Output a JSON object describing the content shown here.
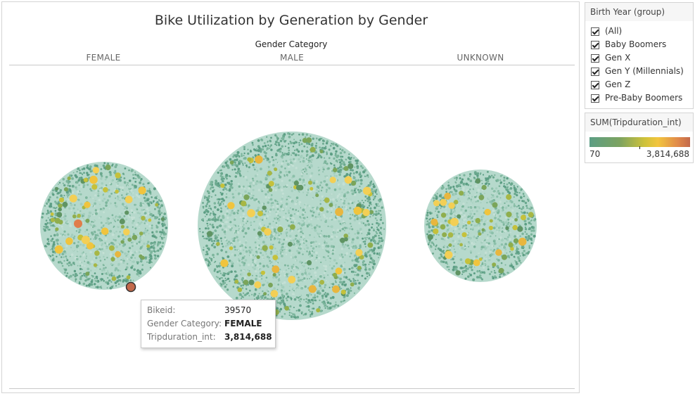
{
  "worksheet": {
    "title": "Bike Utilization by Generation by Gender",
    "category_header": "Gender Category",
    "columns": [
      "FEMALE",
      "MALE",
      "UNKNOWN"
    ]
  },
  "tooltip": {
    "rows": [
      {
        "label": "Bikeid:",
        "value": "39570"
      },
      {
        "label": "Gender Category:",
        "value": "FEMALE"
      },
      {
        "label": "Tripduration_int:",
        "value": "3,814,688"
      }
    ]
  },
  "filter": {
    "title": "Birth Year (group)",
    "items": [
      {
        "label": "(All)",
        "checked": true
      },
      {
        "label": "Baby Boomers",
        "checked": true
      },
      {
        "label": "Gen X",
        "checked": true
      },
      {
        "label": "Gen Y (Millennials)",
        "checked": true
      },
      {
        "label": "Gen Z",
        "checked": true
      },
      {
        "label": "Pre-Baby Boomers",
        "checked": true
      }
    ]
  },
  "legend": {
    "title": "SUM(Tripduration_int)",
    "min_label": "70",
    "max_label": "3,814,688"
  },
  "colors": {
    "low": "#5c9e84",
    "mid": "#cfc23a",
    "high": "#c3694b",
    "bubble_light": "#a9d1c3"
  }
}
